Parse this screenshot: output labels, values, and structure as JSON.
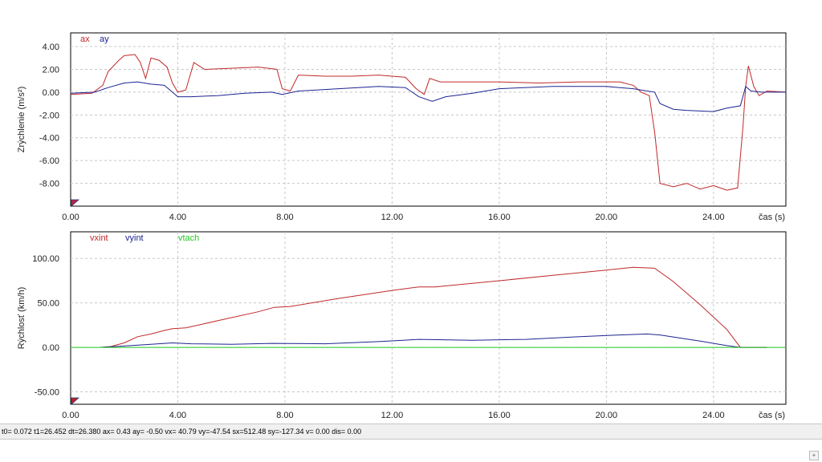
{
  "chart_data": [
    {
      "type": "line",
      "ylabel": "Zrýchlenie  (m/s²)",
      "xlabel": "čas (s)",
      "xlim": [
        0,
        26.7
      ],
      "ylim": [
        -10.0,
        5.2
      ],
      "x_ticks": [
        0,
        4,
        8,
        12,
        16,
        20,
        24
      ],
      "x_tick_labels": [
        "0.00",
        "4.00",
        "8.00",
        "12.00",
        "16.00",
        "20.00",
        "24.00"
      ],
      "y_ticks": [
        4,
        2,
        0,
        -2,
        -4,
        -6,
        -8
      ],
      "y_tick_labels": [
        "4.00",
        "2.00",
        "0.00",
        "-2.00",
        "-4.00",
        "-6.00",
        "-8.00"
      ],
      "grid": true,
      "legend": "top-left",
      "series": [
        {
          "name": "ax",
          "color": "#c0282a",
          "x": [
            0,
            0.8,
            1.2,
            1.4,
            1.8,
            2.0,
            2.4,
            2.6,
            2.8,
            3.0,
            3.3,
            3.6,
            3.8,
            4.0,
            4.3,
            4.6,
            5.0,
            6.0,
            7.0,
            7.7,
            7.9,
            8.2,
            8.5,
            9.5,
            10.5,
            11.5,
            12.5,
            12.9,
            13.2,
            13.4,
            13.8,
            14.5,
            16.0,
            17.5,
            19.0,
            20.5,
            21.0,
            21.3,
            21.6,
            21.8,
            22.0,
            22.5,
            23.0,
            23.5,
            24.0,
            24.5,
            24.9,
            25.1,
            25.2,
            25.3,
            25.5,
            25.7,
            26.0,
            26.7
          ],
          "y": [
            -0.2,
            -0.1,
            0.6,
            1.8,
            2.8,
            3.2,
            3.3,
            2.6,
            1.2,
            3.0,
            2.8,
            2.2,
            0.8,
            0.0,
            0.2,
            2.6,
            2.0,
            2.1,
            2.2,
            2.0,
            0.3,
            0.1,
            1.5,
            1.4,
            1.4,
            1.5,
            1.3,
            0.3,
            -0.2,
            1.2,
            0.9,
            0.9,
            0.9,
            0.8,
            0.9,
            0.9,
            0.6,
            0.0,
            -0.3,
            -3.5,
            -8.0,
            -8.3,
            -8.0,
            -8.5,
            -8.2,
            -8.6,
            -8.4,
            -3.0,
            0.5,
            2.3,
            0.5,
            -0.3,
            0.1,
            0.0
          ]
        },
        {
          "name": "ay",
          "color": "#1c2490",
          "x": [
            0,
            0.9,
            1.4,
            2.0,
            2.5,
            3.0,
            3.5,
            3.8,
            4.0,
            4.5,
            5.5,
            6.5,
            7.5,
            7.9,
            8.5,
            10.0,
            11.5,
            12.5,
            13.0,
            13.5,
            14.0,
            15.0,
            16.0,
            18.0,
            20.0,
            21.0,
            21.8,
            22.0,
            22.5,
            23.0,
            24.0,
            24.5,
            25.0,
            25.2,
            25.4,
            25.8,
            26.7
          ],
          "y": [
            -0.1,
            0.0,
            0.4,
            0.8,
            0.9,
            0.7,
            0.6,
            0.0,
            -0.4,
            -0.4,
            -0.3,
            -0.1,
            0.0,
            -0.2,
            0.1,
            0.3,
            0.5,
            0.4,
            -0.4,
            -0.8,
            -0.4,
            -0.1,
            0.3,
            0.5,
            0.5,
            0.3,
            0.0,
            -1.0,
            -1.5,
            -1.6,
            -1.7,
            -1.4,
            -1.2,
            0.5,
            0.1,
            0.0,
            0.0
          ]
        }
      ]
    },
    {
      "type": "line",
      "ylabel": "Rýchlosť (km/h)",
      "xlabel": "čas (s)",
      "xlim": [
        0,
        26.7
      ],
      "ylim": [
        -64,
        130
      ],
      "x_ticks": [
        0,
        4,
        8,
        12,
        16,
        20,
        24
      ],
      "x_tick_labels": [
        "0.00",
        "4.00",
        "8.00",
        "12.00",
        "16.00",
        "20.00",
        "24.00"
      ],
      "y_ticks": [
        100,
        50,
        0,
        -50
      ],
      "y_tick_labels": [
        "100.00",
        "50.00",
        "0.00",
        "-50.00"
      ],
      "grid": true,
      "legend": "top-left",
      "series": [
        {
          "name": "vxint",
          "color": "#c0282a",
          "x": [
            1.1,
            1.5,
            2.0,
            2.5,
            3.0,
            3.5,
            3.8,
            4.3,
            5.5,
            7.0,
            7.6,
            8.2,
            10.0,
            12.0,
            13.0,
            13.6,
            16.0,
            18.0,
            20.0,
            21.0,
            21.8,
            22.5,
            23.5,
            24.5,
            25.0,
            25.4,
            26.0
          ],
          "y": [
            0,
            1,
            5,
            12,
            15,
            19,
            21,
            22,
            30,
            40,
            45,
            46,
            55,
            64,
            68,
            68,
            75,
            81,
            87,
            90,
            89,
            74,
            48,
            20,
            0,
            0,
            0
          ]
        },
        {
          "name": "vyint",
          "color": "#1c2490",
          "x": [
            1.1,
            2.0,
            3.0,
            3.8,
            4.5,
            6.0,
            7.5,
            9.5,
            11.5,
            13.0,
            15.0,
            17.0,
            19.0,
            20.5,
            21.5,
            22.0,
            23.5,
            24.5,
            25.0,
            25.5,
            26.0
          ],
          "y": [
            0,
            1.5,
            3.5,
            5,
            4,
            3.5,
            4.5,
            4,
            6.5,
            9,
            8,
            9,
            12,
            14,
            15,
            14,
            7,
            2,
            0,
            0,
            0
          ]
        },
        {
          "name": "vtach",
          "color": "#22cc22",
          "x": [
            0,
            26.7
          ],
          "y": [
            0,
            0
          ]
        }
      ]
    }
  ],
  "status_bar": {
    "text": "t0= 0.072 t1=26.452 dt=26.380    ax=  0.43 ay= -0.50 vx= 40.79 vy=-47.54  sx=512.48 sy=-127.34  v=  0.00 dis=  0.00"
  },
  "corner_button": {
    "label": "+"
  }
}
